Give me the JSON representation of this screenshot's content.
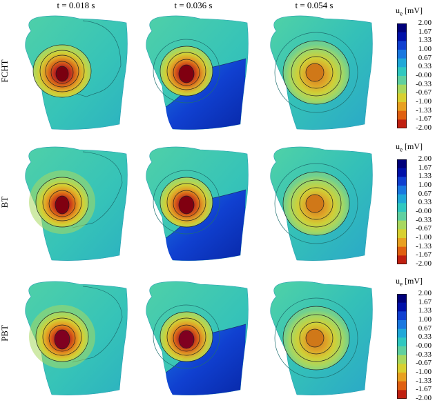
{
  "columns": [
    "t = 0.018 s",
    "t = 0.036 s",
    "t = 0.054 s"
  ],
  "rows": [
    "FCHT",
    "BT",
    "PBT"
  ],
  "colorbar": {
    "title_main": "u",
    "title_sub": "e",
    "title_unit": " [mV]",
    "ticks": [
      "2.00",
      "1.67",
      "1.33",
      "1.00",
      "0.67",
      "0.33",
      "-0.00",
      "-0.33",
      "-0.67",
      "-1.00",
      "-1.33",
      "-1.67",
      "-2.00"
    ],
    "colors": [
      "#00007a",
      "#0010a8",
      "#1040d0",
      "#1a78e0",
      "#20a8d8",
      "#30c8c0",
      "#60d0a0",
      "#a8d860",
      "#d8d030",
      "#e8a020",
      "#e06010",
      "#c02010",
      "#800010"
    ]
  },
  "icons": {
    "torso": "torso-surface-icon"
  }
}
